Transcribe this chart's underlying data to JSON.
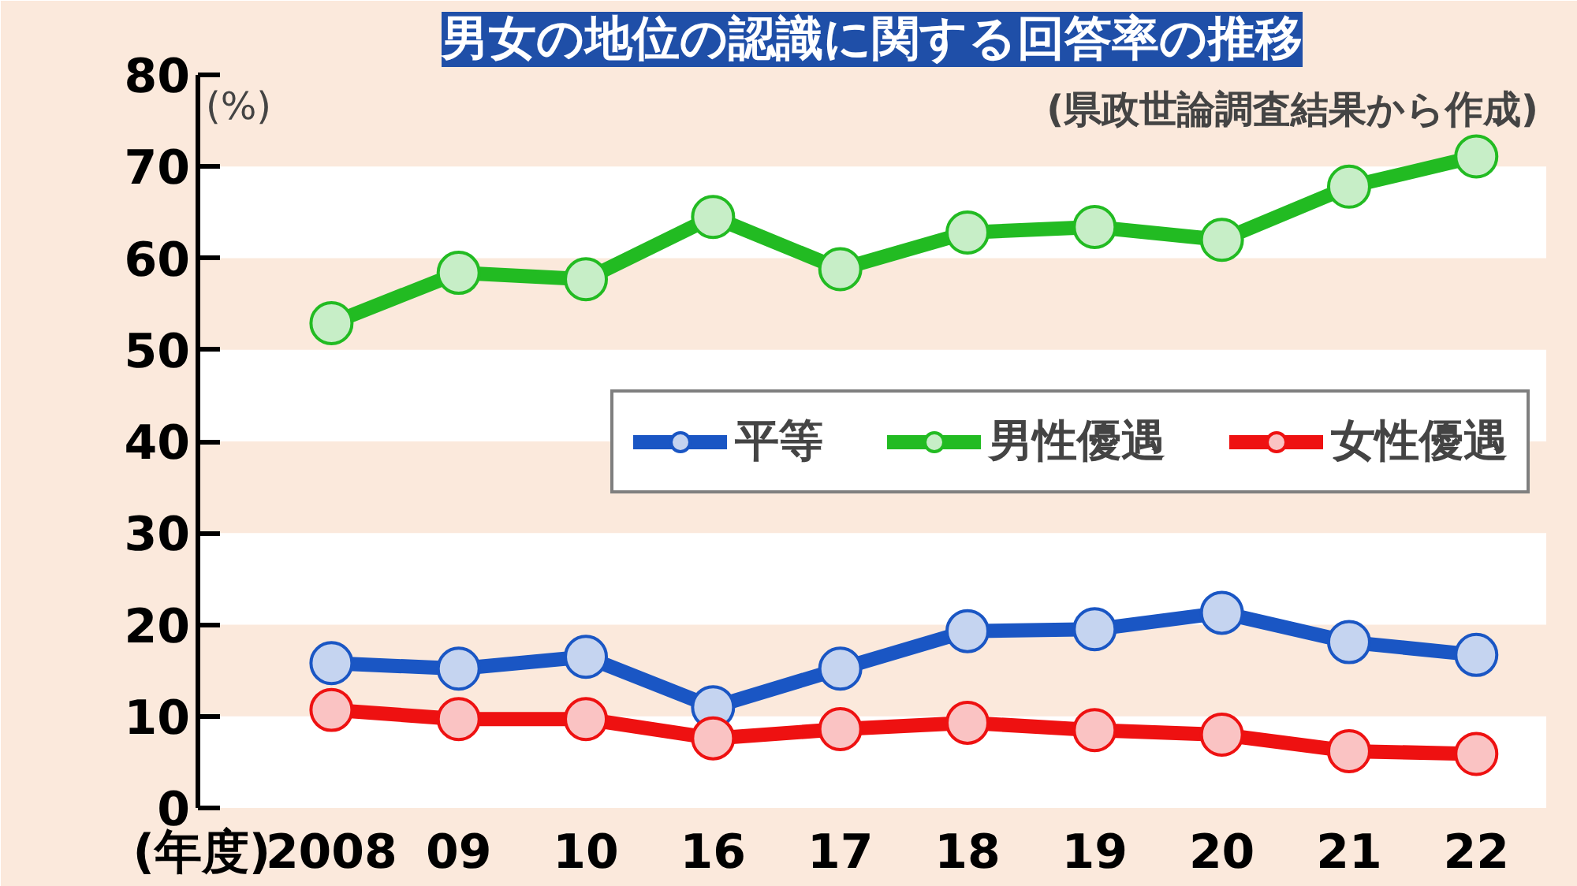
{
  "chart_data": {
    "type": "line",
    "title": "男女の地位の認識に関する回答率の推移",
    "annotations": [
      "(県政世論調査結果から作成)"
    ],
    "ylabel": "(%)",
    "xlabel": "(年度)",
    "categories": [
      "2008",
      "09",
      "10",
      "16",
      "17",
      "18",
      "19",
      "20",
      "21",
      "22"
    ],
    "series": [
      {
        "name": "平等",
        "color": "#1a56c4",
        "values": [
          15.8,
          15.2,
          16.5,
          11.0,
          15.2,
          19.3,
          19.5,
          21.3,
          18.1,
          16.7
        ]
      },
      {
        "name": "男性優遇",
        "color": "#22bb22",
        "values": [
          52.9,
          58.4,
          57.7,
          64.5,
          58.8,
          62.8,
          63.4,
          62.0,
          67.8,
          71.1
        ]
      },
      {
        "name": "女性優遇",
        "color": "#ee1111",
        "values": [
          10.7,
          9.7,
          9.7,
          7.6,
          8.6,
          9.3,
          8.5,
          8.0,
          6.2,
          5.9
        ]
      }
    ],
    "ylim": [
      0,
      80
    ],
    "yticks": [
      0,
      10,
      20,
      30,
      40,
      50,
      60,
      70,
      80
    ],
    "bands": [
      {
        "axis": "y",
        "from": 10,
        "to": 20,
        "color": "#fbe9dc"
      },
      {
        "axis": "y",
        "from": 30,
        "to": 40,
        "color": "#fbe9dc"
      },
      {
        "axis": "y",
        "from": 50,
        "to": 60,
        "color": "#fbe9dc"
      },
      {
        "axis": "y",
        "from": 70,
        "to": 80,
        "color": "#fbe9dc"
      }
    ],
    "legend": "right",
    "marker": "circle",
    "line_style": "solid"
  }
}
